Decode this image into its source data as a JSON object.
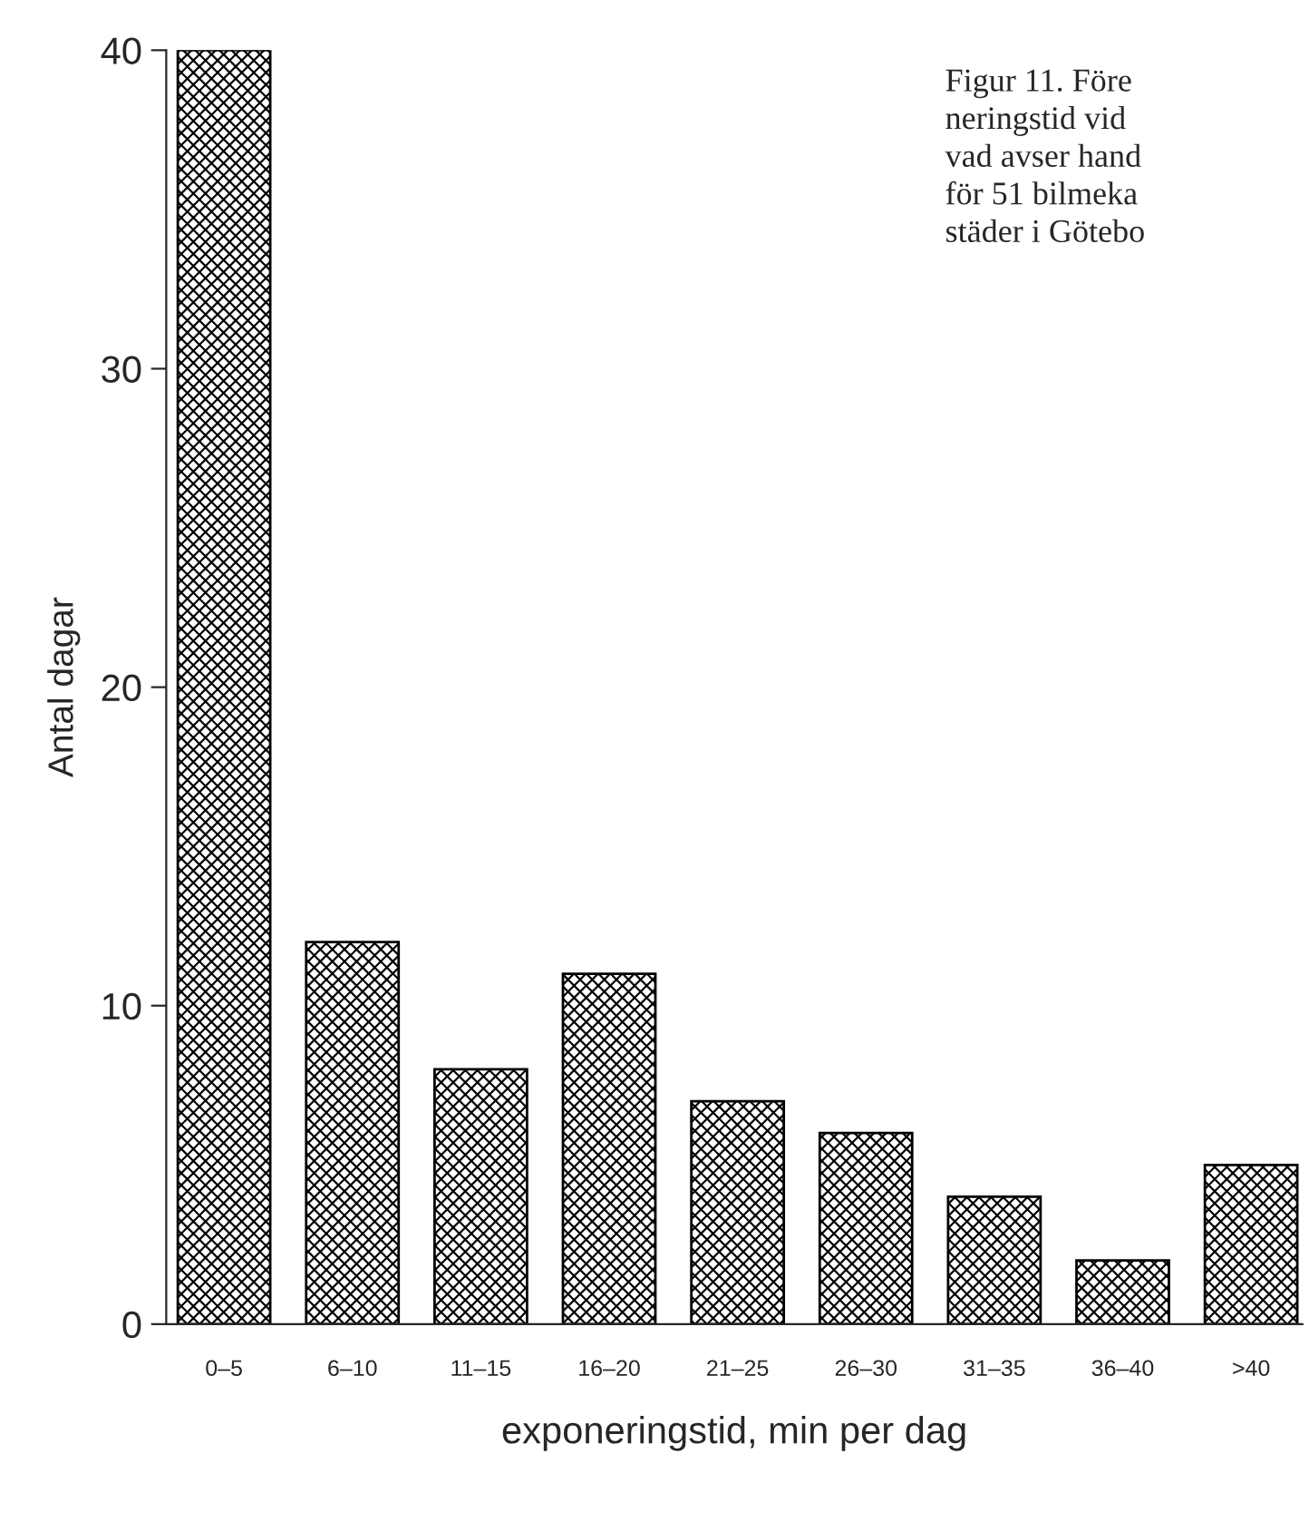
{
  "chart_data": {
    "type": "bar",
    "xlabel": "exponeringstid, min per dag",
    "ylabel": "Antal dagar",
    "categories": [
      "0–5",
      "6–10",
      "11–15",
      "16–20",
      "21–25",
      "26–30",
      "31–35",
      "36–40",
      ">40"
    ],
    "values": [
      40,
      12,
      8,
      11,
      7,
      6,
      4,
      2,
      5
    ],
    "color": "#000000",
    "ylim": [
      0,
      40
    ],
    "yticks": [
      0,
      10,
      20,
      30,
      40
    ],
    "grid": false,
    "legend": false,
    "annotations": [
      "Figur 11. Före\nneringstid vid\nvad avser hand\nför 51 bilmeka\nstäder i Götebo"
    ]
  }
}
